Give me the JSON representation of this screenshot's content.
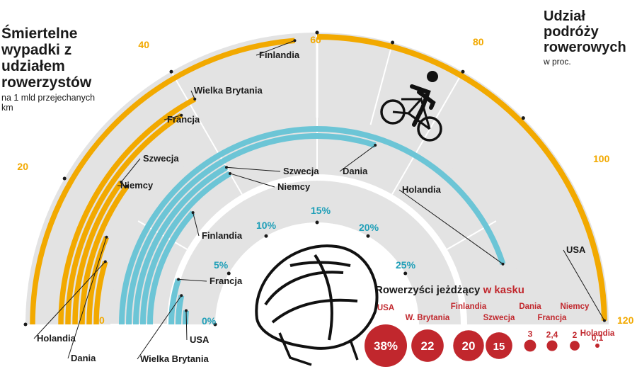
{
  "colors": {
    "deaths": "#f2a900",
    "helmet": "#6cc5d6",
    "share": "#f2a900",
    "track": "#e3e3e3",
    "text": "#1a1a1a",
    "helmet_text": "#1f9fb8",
    "bubble": "#c1272d"
  },
  "icons": [
    "cyclist-icon",
    "bike-helmet-icon"
  ],
  "headings": {
    "deaths_title": "Śmiertelne wypadki z udziałem rowerzystów",
    "deaths_subtitle": "na 1 mld przejechanych km",
    "share_title": "Udział podróży rowerowych",
    "share_subtitle": "w proc.",
    "helmet_title_part1": "Rowerzyści jeżdżący ",
    "helmet_title_part2": "w kasku"
  },
  "chart_data": [
    {
      "type": "radial-bar",
      "id": "deaths",
      "title": "Śmiertelne wypadki z udziałem rowerzystów",
      "subtitle": "na 1 mld przejechanych km",
      "scale": [
        0,
        60
      ],
      "ticks": [
        "0",
        "20",
        "40",
        "60"
      ],
      "categories": [
        "Holandia",
        "Dania",
        "Niemcy",
        "Szwecja",
        "Francja",
        "Wielka Brytania",
        "Finlandia"
      ],
      "values": [
        11,
        15,
        24,
        24,
        38,
        41,
        57
      ]
    },
    {
      "type": "radial-bar",
      "id": "share",
      "title": "Udział podróży rowerowych",
      "subtitle": "w proc.",
      "scale": [
        0,
        120
      ],
      "ticks": [
        "60",
        "80",
        "100",
        "120"
      ],
      "categories": [
        "USA"
      ],
      "values": [
        1
      ]
    },
    {
      "type": "radial-bar",
      "id": "helmet",
      "scale": [
        0,
        30
      ],
      "ticks": [
        "0%",
        "5%",
        "10%",
        "15%",
        "20%",
        "25%"
      ],
      "categories": [
        "USA",
        "Wielka Brytania",
        "Francja",
        "Finlandia",
        "Niemcy",
        "Szwecja",
        "Dania",
        "Holandia"
      ],
      "values": [
        1,
        2,
        3,
        7,
        10,
        10,
        18,
        27
      ]
    },
    {
      "type": "bubble",
      "id": "helmet-use",
      "title": "Rowerzyści jeżdżący w kasku",
      "categories": [
        "USA",
        "W. Brytania",
        "Finlandia",
        "Szwecja",
        "Dania",
        "Francja",
        "Niemcy",
        "Holandia"
      ],
      "values": [
        38,
        22,
        20,
        15,
        3,
        2.4,
        2,
        0.1
      ],
      "value_labels": [
        "38%",
        "22",
        "20",
        "15",
        "3",
        "2,4",
        "2",
        "0,1"
      ]
    }
  ]
}
